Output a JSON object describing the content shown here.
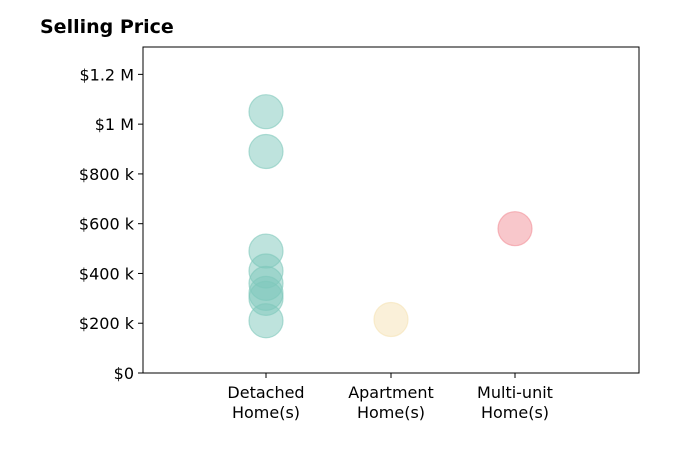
{
  "chart_data": {
    "type": "scatter",
    "title": "Selling Price",
    "xlabel": "",
    "ylabel": "",
    "ylim": [
      0,
      1310000
    ],
    "y_ticks": [
      0,
      200000,
      400000,
      600000,
      800000,
      1000000,
      1200000
    ],
    "y_tick_labels": [
      "$0",
      "$200 k",
      "$400 k",
      "$600 k",
      "$800 k",
      "$1 M",
      "$1.2 M"
    ],
    "categories": [
      {
        "line1": "Detached",
        "line2": "Home(s)"
      },
      {
        "line1": "Apartment",
        "line2": "Home(s)"
      },
      {
        "line1": "Multi-unit",
        "line2": "Home(s)"
      }
    ],
    "series": [
      {
        "category_index": 0,
        "color": "#7ec8bb",
        "values": [
          1050000,
          890000,
          490000,
          410000,
          360000,
          320000,
          300000,
          210000
        ]
      },
      {
        "category_index": 1,
        "color": "#f5e2b4",
        "values": [
          215000
        ]
      },
      {
        "category_index": 2,
        "color": "#f28f97",
        "values": [
          580000
        ]
      }
    ],
    "grid": false,
    "legend": "none"
  }
}
